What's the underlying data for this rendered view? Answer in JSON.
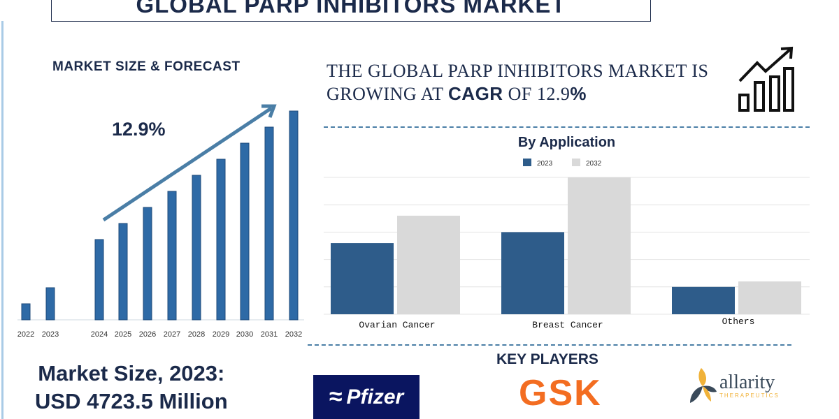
{
  "title": "GLOBAL PARP INHIBITORS MARKET",
  "left_panel": {
    "title": "MARKET SIZE & FORECAST",
    "cagr_label": "12.9%"
  },
  "headline": {
    "line1": "THE GLOBAL PARP INHIBITORS MARKET IS",
    "line2_prefix": "GROWING AT ",
    "line2_bold": "CAGR",
    "line2_suffix": " OF 12.9",
    "line2_pct": "%"
  },
  "market_size": {
    "line1": "Market Size, 2023:",
    "line2": "USD 4723.5 Million"
  },
  "key_players": {
    "title": "KEY PLAYERS",
    "players": [
      "Pfizer",
      "GSK",
      "allarity",
      "THERAPEUTICS"
    ]
  },
  "colors": {
    "bar": "#2e6aa6",
    "bar_2032": "#d9d9d9",
    "bar_2023": "#2e5c8a",
    "arrow": "#4a7ea6",
    "navy": "#1b2a4a",
    "gsk": "#f36d21",
    "pfizer_bg": "#0a1560"
  },
  "icons": [
    "growth-chart-icon"
  ],
  "chart_data": [
    {
      "type": "bar",
      "title": "MARKET SIZE & FORECAST",
      "categories": [
        "2022",
        "2023",
        "2024",
        "2025",
        "2026",
        "2027",
        "2028",
        "2029",
        "2030",
        "2031",
        "2032"
      ],
      "values": [
        23,
        46,
        115,
        138,
        161,
        184,
        207,
        230,
        253,
        276,
        299
      ],
      "annotation": "12.9%",
      "grid": false,
      "yaxis": "none"
    },
    {
      "type": "bar",
      "title": "By Application",
      "categories": [
        "Ovarian Cancer",
        "Breast Cancer",
        "Others"
      ],
      "series": [
        {
          "name": "2023",
          "values": [
            2.6,
            3.0,
            1.0
          ]
        },
        {
          "name": "2032",
          "values": [
            3.6,
            5.0,
            1.2
          ]
        }
      ],
      "ylim": [
        0,
        5
      ],
      "grid": true,
      "legend": "top"
    }
  ]
}
